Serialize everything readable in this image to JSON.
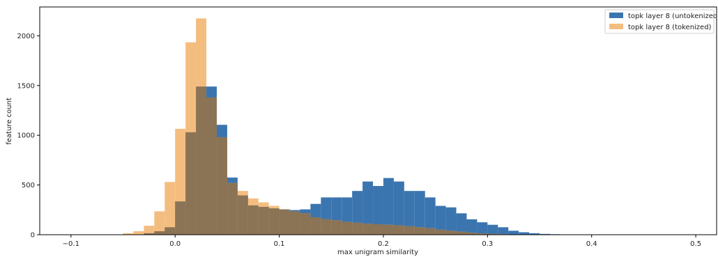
{
  "chart_data": {
    "type": "histogram",
    "title": "",
    "xlabel": "max unigram similarity",
    "ylabel": "feature count",
    "xlim": [
      -0.13,
      0.52
    ],
    "ylim": [
      0,
      2290
    ],
    "xticks": [
      -0.1,
      0.0,
      0.1,
      0.2,
      0.3,
      0.4,
      0.5
    ],
    "xtick_labels": [
      "−0.1",
      "0.0",
      "0.1",
      "0.2",
      "0.3",
      "0.4",
      "0.5"
    ],
    "yticks": [
      0,
      500,
      1000,
      1500,
      2000
    ],
    "ytick_labels": [
      "0",
      "500",
      "1000",
      "1500",
      "2000"
    ],
    "grid": false,
    "legend_position": "top-right",
    "colors": {
      "untokenized": "#3b75af",
      "tokenized": "#f4bd80",
      "overlap": "#8b7355"
    },
    "series": [
      {
        "name": "topk layer 8 (untokenized)",
        "bins": [
          [
            -0.05,
            -0.04,
            0
          ],
          [
            -0.04,
            -0.03,
            0
          ],
          [
            -0.03,
            -0.02,
            15
          ],
          [
            -0.02,
            -0.01,
            35
          ],
          [
            -0.01,
            0.0,
            75
          ],
          [
            0.0,
            0.01,
            335
          ],
          [
            0.01,
            0.02,
            1030
          ],
          [
            0.02,
            0.03,
            1490
          ],
          [
            0.03,
            0.04,
            1490
          ],
          [
            0.04,
            0.05,
            1105
          ],
          [
            0.05,
            0.06,
            575
          ],
          [
            0.06,
            0.07,
            395
          ],
          [
            0.07,
            0.08,
            295
          ],
          [
            0.08,
            0.09,
            280
          ],
          [
            0.09,
            0.1,
            265
          ],
          [
            0.1,
            0.11,
            255
          ],
          [
            0.11,
            0.12,
            248
          ],
          [
            0.12,
            0.13,
            255
          ],
          [
            0.13,
            0.14,
            310
          ],
          [
            0.14,
            0.15,
            375
          ],
          [
            0.15,
            0.16,
            375
          ],
          [
            0.16,
            0.17,
            375
          ],
          [
            0.17,
            0.18,
            440
          ],
          [
            0.18,
            0.19,
            535
          ],
          [
            0.19,
            0.2,
            490
          ],
          [
            0.2,
            0.21,
            570
          ],
          [
            0.21,
            0.22,
            535
          ],
          [
            0.22,
            0.23,
            440
          ],
          [
            0.23,
            0.24,
            440
          ],
          [
            0.24,
            0.25,
            375
          ],
          [
            0.25,
            0.26,
            290
          ],
          [
            0.26,
            0.27,
            275
          ],
          [
            0.27,
            0.28,
            215
          ],
          [
            0.28,
            0.29,
            155
          ],
          [
            0.29,
            0.3,
            125
          ],
          [
            0.3,
            0.31,
            100
          ],
          [
            0.31,
            0.32,
            75
          ],
          [
            0.32,
            0.33,
            40
          ],
          [
            0.33,
            0.34,
            25
          ],
          [
            0.34,
            0.35,
            15
          ],
          [
            0.35,
            0.36,
            8
          ],
          [
            0.36,
            0.37,
            5
          ],
          [
            0.37,
            0.38,
            3
          ],
          [
            0.38,
            0.39,
            2
          ],
          [
            0.39,
            0.4,
            1
          ]
        ]
      },
      {
        "name": "topk layer 8 (tokenized)",
        "bins": [
          [
            -0.05,
            -0.04,
            15
          ],
          [
            -0.04,
            -0.03,
            35
          ],
          [
            -0.03,
            -0.02,
            90
          ],
          [
            -0.02,
            -0.01,
            235
          ],
          [
            -0.01,
            0.0,
            530
          ],
          [
            0.0,
            0.01,
            1065
          ],
          [
            0.01,
            0.02,
            1935
          ],
          [
            0.02,
            0.03,
            2175
          ],
          [
            0.03,
            0.04,
            1380
          ],
          [
            0.04,
            0.05,
            980
          ],
          [
            0.05,
            0.06,
            520
          ],
          [
            0.06,
            0.07,
            440
          ],
          [
            0.07,
            0.08,
            365
          ],
          [
            0.08,
            0.09,
            325
          ],
          [
            0.09,
            0.1,
            290
          ],
          [
            0.1,
            0.11,
            255
          ],
          [
            0.11,
            0.12,
            235
          ],
          [
            0.12,
            0.13,
            215
          ],
          [
            0.13,
            0.14,
            175
          ],
          [
            0.14,
            0.15,
            155
          ],
          [
            0.15,
            0.16,
            145
          ],
          [
            0.16,
            0.17,
            130
          ],
          [
            0.17,
            0.18,
            120
          ],
          [
            0.18,
            0.19,
            110
          ],
          [
            0.19,
            0.2,
            105
          ],
          [
            0.2,
            0.21,
            100
          ],
          [
            0.21,
            0.22,
            95
          ],
          [
            0.22,
            0.23,
            85
          ],
          [
            0.23,
            0.24,
            75
          ],
          [
            0.24,
            0.25,
            65
          ],
          [
            0.25,
            0.26,
            50
          ],
          [
            0.26,
            0.27,
            40
          ],
          [
            0.27,
            0.28,
            30
          ],
          [
            0.28,
            0.29,
            20
          ],
          [
            0.29,
            0.3,
            12
          ],
          [
            0.3,
            0.31,
            8
          ],
          [
            0.31,
            0.32,
            5
          ],
          [
            0.32,
            0.33,
            3
          ]
        ]
      }
    ]
  }
}
